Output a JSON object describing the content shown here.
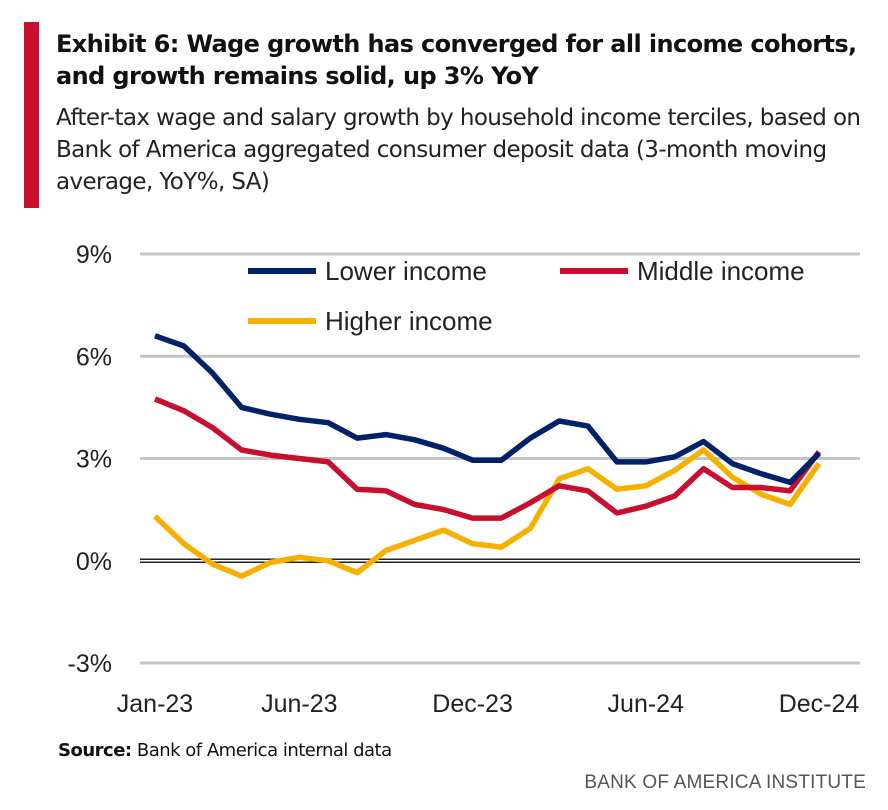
{
  "title": "Exhibit 6: Wage growth has converged for all income cohorts, and growth remains solid, up 3% YoY",
  "subtitle": "After-tax wage and salary growth by household income terciles, based on Bank of America aggregated consumer deposit data (3-month moving average, YoY%, SA)",
  "source_label": "Source:",
  "source_text": "Bank of America internal data",
  "brand": "BANK OF AMERICA INSTITUTE",
  "chart_data": {
    "type": "line",
    "title": "Exhibit 6: Wage growth has converged for all income cohorts, and growth remains solid, up 3% YoY",
    "xlabel": "",
    "ylabel": "",
    "ylim": [
      -3,
      9
    ],
    "yticks": [
      -3,
      0,
      3,
      6,
      9
    ],
    "ytick_labels": [
      "-3%",
      "0%",
      "3%",
      "6%",
      "9%"
    ],
    "x": [
      "Jan-23",
      "Feb-23",
      "Mar-23",
      "Apr-23",
      "May-23",
      "Jun-23",
      "Jul-23",
      "Aug-23",
      "Sep-23",
      "Oct-23",
      "Nov-23",
      "Dec-23",
      "Jan-24",
      "Feb-24",
      "Mar-24",
      "Apr-24",
      "May-24",
      "Jun-24",
      "Jul-24",
      "Aug-24",
      "Sep-24",
      "Oct-24",
      "Nov-24",
      "Dec-24"
    ],
    "xtick_labels": [
      "Jan-23",
      "Jun-23",
      "Dec-23",
      "Jun-24",
      "Dec-24"
    ],
    "xtick_index": [
      0,
      5,
      11,
      17,
      23
    ],
    "grid": true,
    "legend": "top",
    "series": [
      {
        "name": "Lower income",
        "color": "#012169",
        "values": [
          6.6,
          6.3,
          5.5,
          4.5,
          4.3,
          4.15,
          4.05,
          3.6,
          3.7,
          3.55,
          3.3,
          2.95,
          2.95,
          3.6,
          4.1,
          3.95,
          2.9,
          2.9,
          3.05,
          3.5,
          2.85,
          2.55,
          2.3,
          3.15
        ]
      },
      {
        "name": "Middle income",
        "color": "#c8102e",
        "values": [
          4.75,
          4.4,
          3.9,
          3.25,
          3.1,
          3.0,
          2.9,
          2.1,
          2.05,
          1.65,
          1.5,
          1.25,
          1.25,
          1.7,
          2.2,
          2.05,
          1.4,
          1.6,
          1.9,
          2.7,
          2.15,
          2.15,
          2.05,
          3.2
        ]
      },
      {
        "name": "Higher income",
        "color": "#f5b000",
        "values": [
          1.3,
          0.5,
          -0.1,
          -0.45,
          -0.05,
          0.1,
          0.0,
          -0.35,
          0.3,
          0.6,
          0.9,
          0.5,
          0.4,
          0.95,
          2.4,
          2.7,
          2.1,
          2.2,
          2.65,
          3.25,
          2.45,
          1.95,
          1.65,
          2.85
        ]
      }
    ]
  }
}
